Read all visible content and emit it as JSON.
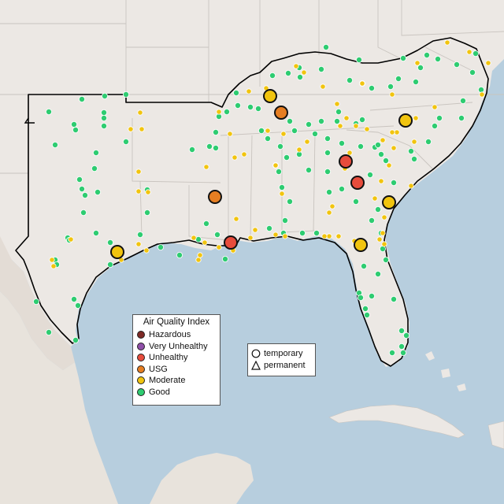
{
  "colors": {
    "water": "#b7cede",
    "land": "#ece8e4",
    "land_border": "#c9c4bf",
    "southwest_land": "#e3dcd5",
    "region_outline": "#000000"
  },
  "legend": {
    "title": "Air Quality Index",
    "categories": [
      {
        "label": "Hazardous",
        "color": "#7e2a26"
      },
      {
        "label": "Very Unhealthy",
        "color": "#8f4fa8"
      },
      {
        "label": "Unhealthy",
        "color": "#e74c3c"
      },
      {
        "label": "USG",
        "color": "#e67e22"
      },
      {
        "label": "Moderate",
        "color": "#f1c40f"
      },
      {
        "label": "Good",
        "color": "#2ecc71"
      }
    ]
  },
  "shape_legend": {
    "items": [
      {
        "label": "temporary",
        "icon": "circle-icon"
      },
      {
        "label": "permanent",
        "icon": "triangle-icon"
      }
    ]
  },
  "monitor_counts": {
    "Unhealthy": 3,
    "USG": 2,
    "Moderate (large)": 5
  }
}
